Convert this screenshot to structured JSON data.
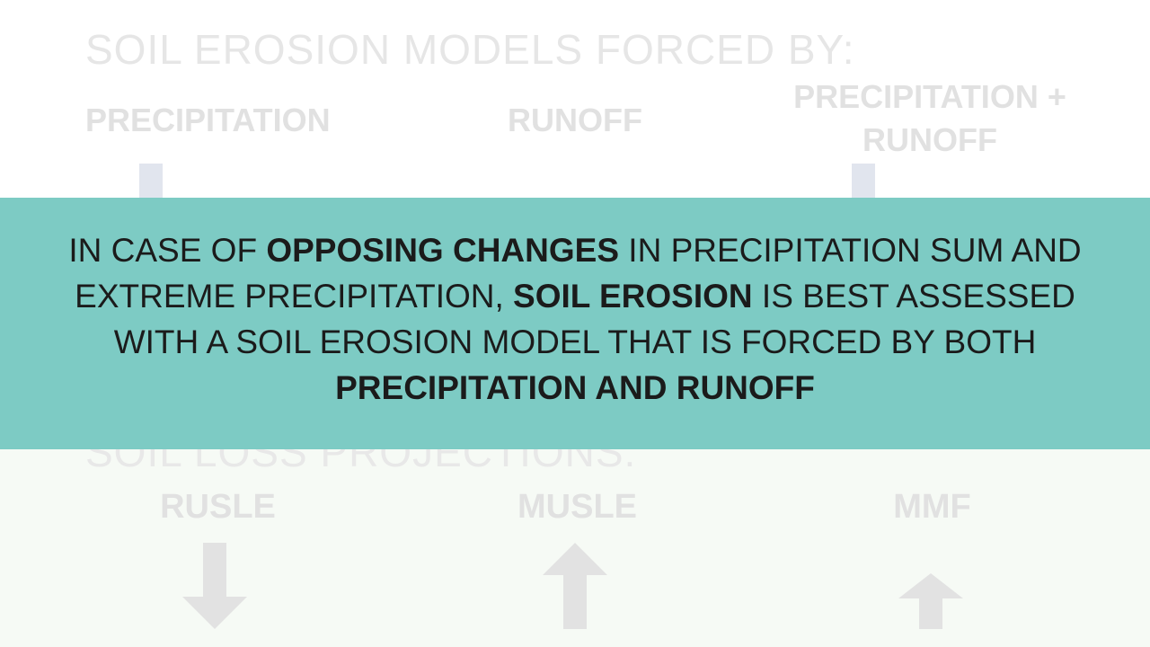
{
  "slide": {
    "title": "SOIL EROSION MODELS FORCED BY:",
    "forcing_columns": [
      {
        "label": "PRECIPITATION"
      },
      {
        "label": "RUNOFF"
      },
      {
        "label_line1": "PRECIPITATION +",
        "label_line2": "RUNOFF"
      }
    ],
    "projections_title": "SOIL LOSS PROJECTIONS:",
    "models": [
      {
        "label": "RUSLE",
        "trend_icon": "arrow-down-icon"
      },
      {
        "label": "MUSLE",
        "trend_icon": "arrow-up-icon"
      },
      {
        "label": "MMF",
        "trend_icon": "arrow-up-icon"
      }
    ],
    "message": {
      "t1": "IN CASE OF ",
      "b1": "OPPOSING CHANGES",
      "t2": " IN PRECIPITATION SUM AND EXTREME PRECIPITATION, ",
      "b2": "SOIL EROSION",
      "t3": " IS BEST ASSESSED WITH A SOIL EROSION MODEL THAT IS FORCED BY BOTH ",
      "b3": "PRECIPITATION AND RUNOFF"
    }
  },
  "colors": {
    "overlay_band": "#7dcbc4",
    "faded_text": "#e1e1e1",
    "arrow_fill": "#e2e2e2",
    "bottom_band": "#f6faf5"
  }
}
